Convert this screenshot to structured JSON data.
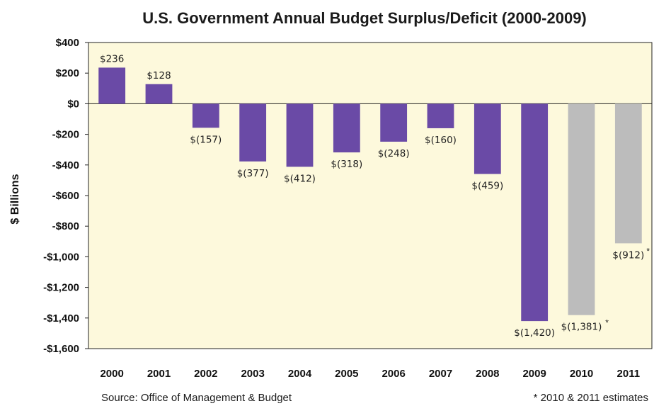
{
  "chart_data": {
    "type": "bar",
    "title": "U.S. Government Annual Budget Surplus/Deficit (2000-2009)",
    "ylabel": "$ Billions",
    "xlabel": "",
    "ylim": [
      -1600,
      400
    ],
    "yticks": [
      400,
      200,
      0,
      -200,
      -400,
      -600,
      -800,
      -1000,
      -1200,
      -1400,
      -1600
    ],
    "ytick_labels": [
      "$400",
      "$200",
      "$0",
      "-$200",
      "-$400",
      "-$600",
      "-$800",
      "-$1,000",
      "-$1,200",
      "-$1,400",
      "-$1,600"
    ],
    "categories": [
      "2000",
      "2001",
      "2002",
      "2003",
      "2004",
      "2005",
      "2006",
      "2007",
      "2008",
      "2009",
      "2010",
      "2011"
    ],
    "values": [
      236,
      128,
      -157,
      -377,
      -412,
      -318,
      -248,
      -160,
      -459,
      -1420,
      -1381,
      -912
    ],
    "data_labels": [
      "$236",
      "$128",
      "$(157)",
      "$(377)",
      "$(412)",
      "$(318)",
      "$(248)",
      "$(160)",
      "$(459)",
      "$(1,420)",
      "$(1,381)",
      "$(912)"
    ],
    "estimate_marks": [
      "",
      "",
      "",
      "",
      "",
      "",
      "",
      "",
      "",
      "",
      "*",
      "*"
    ],
    "bar_colors": [
      "#6a4aa6",
      "#6a4aa6",
      "#6a4aa6",
      "#6a4aa6",
      "#6a4aa6",
      "#6a4aa6",
      "#6a4aa6",
      "#6a4aa6",
      "#6a4aa6",
      "#6a4aa6",
      "#bcbcbc",
      "#bcbcbc"
    ],
    "plot_background": "#fdf9dc",
    "grid": false,
    "legend": "none"
  },
  "footer": {
    "source": "Source: Office of Management & Budget",
    "note": "* 2010 & 2011 estimates"
  }
}
